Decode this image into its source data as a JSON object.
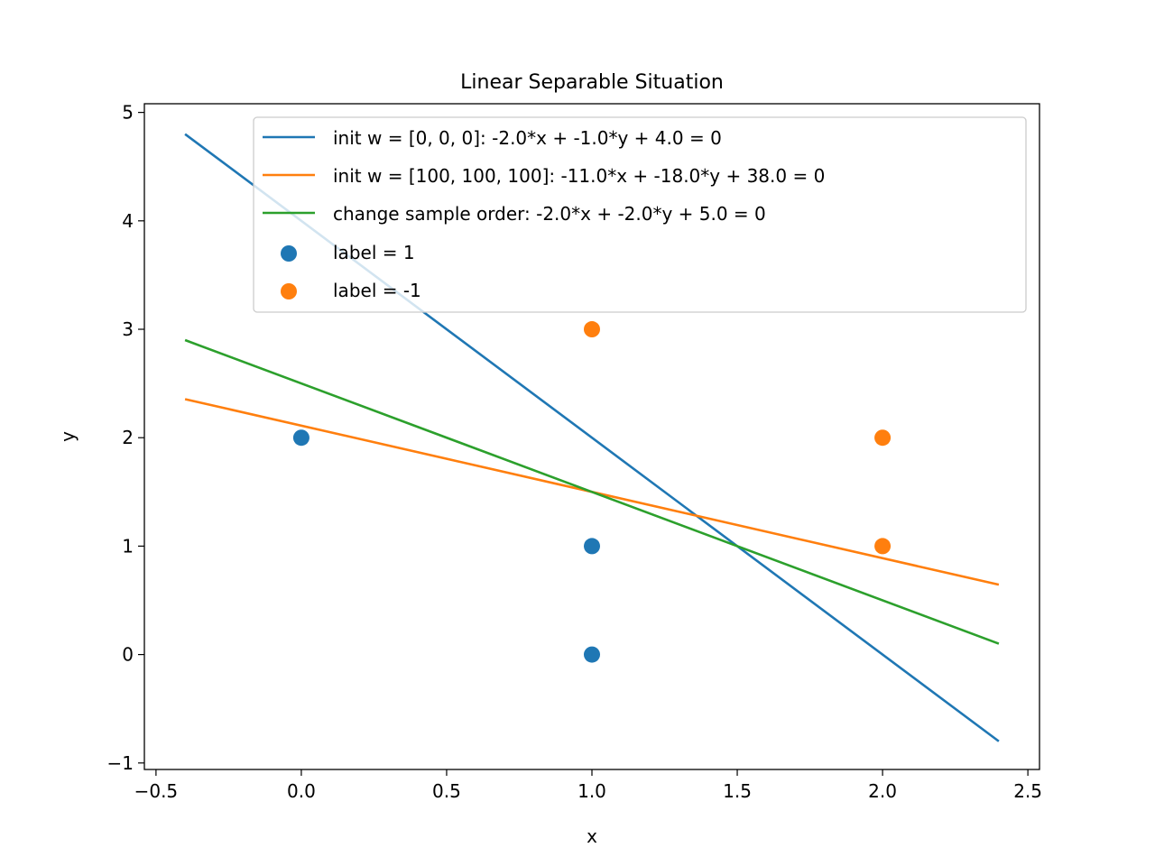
{
  "chart_data": {
    "type": "scatter",
    "title": "Linear Separable Situation",
    "xlabel": "x",
    "ylabel": "y",
    "xlim": [
      -0.54,
      2.54
    ],
    "ylim": [
      -1.06,
      5.08
    ],
    "x_ticks": [
      -0.5,
      0.0,
      0.5,
      1.0,
      1.5,
      2.0,
      2.5
    ],
    "x_tick_labels": [
      "−0.5",
      "0.0",
      "0.5",
      "1.0",
      "1.5",
      "2.0",
      "2.5"
    ],
    "y_ticks": [
      -1,
      0,
      1,
      2,
      3,
      4,
      5
    ],
    "y_tick_labels": [
      "−1",
      "0",
      "1",
      "2",
      "3",
      "4",
      "5"
    ],
    "grid": false,
    "legend_position": "top-right",
    "lines": [
      {
        "name": "init w = [0, 0, 0]: -2.0*x + -1.0*y + 4.0 = 0",
        "color": "#1f77b4",
        "x": [
          -0.4,
          2.4
        ],
        "y": [
          4.8,
          -0.8
        ]
      },
      {
        "name": "init w = [100, 100, 100]: -11.0*x + -18.0*y + 38.0 = 0",
        "color": "#ff7f0e",
        "x": [
          -0.4,
          2.4
        ],
        "y": [
          2.3556,
          0.6444
        ]
      },
      {
        "name": "change sample order: -2.0*x + -2.0*y + 5.0 = 0",
        "color": "#2ca02c",
        "x": [
          -0.4,
          2.4
        ],
        "y": [
          2.9,
          0.1
        ]
      }
    ],
    "scatter": [
      {
        "name": "label = 1",
        "color": "#1f77b4",
        "points": [
          [
            0,
            2
          ],
          [
            1,
            1
          ],
          [
            1,
            0
          ]
        ]
      },
      {
        "name": "label = -1",
        "color": "#ff7f0e",
        "points": [
          [
            1,
            3
          ],
          [
            2,
            2
          ],
          [
            2,
            1
          ]
        ]
      }
    ]
  }
}
